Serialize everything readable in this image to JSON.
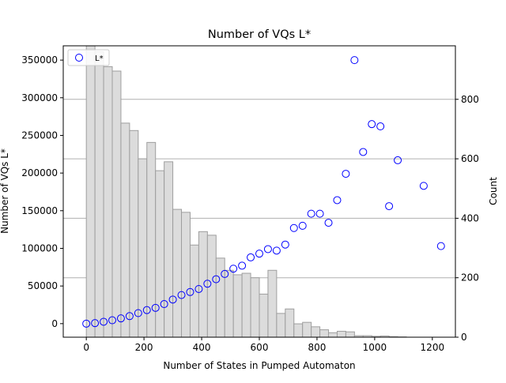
{
  "chart_data": {
    "type": "scatter",
    "title": "Number of VQs L*",
    "xlabel": "Number of States in Pumped Automaton",
    "ylabel": "Number of VQs L*",
    "ylabel_right": "Count",
    "xlim": [
      -80,
      1280
    ],
    "ylim": [
      -18000,
      369000
    ],
    "ylim_right": [
      0,
      980
    ],
    "x_ticks": [
      0,
      200,
      400,
      600,
      800,
      1000,
      1200
    ],
    "y_ticks": [
      0,
      50000,
      100000,
      150000,
      200000,
      250000,
      300000,
      350000
    ],
    "y_ticks_right": [
      0,
      200,
      400,
      600,
      800
    ],
    "grid": "right-axis horizontal lines",
    "legend": {
      "position": "top-left",
      "entries": [
        "L*"
      ]
    },
    "colors": {
      "marker": "#0000ff",
      "bar_fill": "#dcdcdc",
      "bar_edge": "#9e9e9e",
      "grid": "#b0b0b0"
    },
    "series": [
      {
        "name": "L*",
        "kind": "scatter",
        "axis": "left",
        "x": [
          0,
          30,
          60,
          90,
          120,
          150,
          180,
          210,
          240,
          270,
          300,
          330,
          360,
          390,
          420,
          450,
          480,
          510,
          540,
          570,
          600,
          630,
          660,
          690,
          720,
          750,
          780,
          810,
          840,
          870,
          900,
          930,
          960,
          990,
          1020,
          1050,
          1080,
          1170,
          1230
        ],
        "y": [
          0,
          700,
          2500,
          4500,
          7000,
          10000,
          14000,
          18000,
          21000,
          26000,
          32000,
          38000,
          42000,
          46000,
          53000,
          59000,
          66000,
          73000,
          77000,
          88000,
          93000,
          99000,
          97000,
          105000,
          127000,
          130000,
          146000,
          146000,
          134000,
          164000,
          199000,
          350000,
          228000,
          265000,
          262000,
          156000,
          217000,
          183000,
          103000
        ]
      },
      {
        "name": "",
        "kind": "histogram",
        "axis": "right",
        "bin_start": 0,
        "bin_width": 30,
        "counts": [
          980,
          960,
          910,
          895,
          720,
          695,
          600,
          655,
          560,
          590,
          430,
          420,
          310,
          355,
          343,
          266,
          225,
          210,
          215,
          200,
          145,
          225,
          80,
          95,
          45,
          50,
          35,
          25,
          15,
          20,
          18,
          5,
          5,
          3,
          4,
          2,
          1
        ]
      }
    ]
  }
}
